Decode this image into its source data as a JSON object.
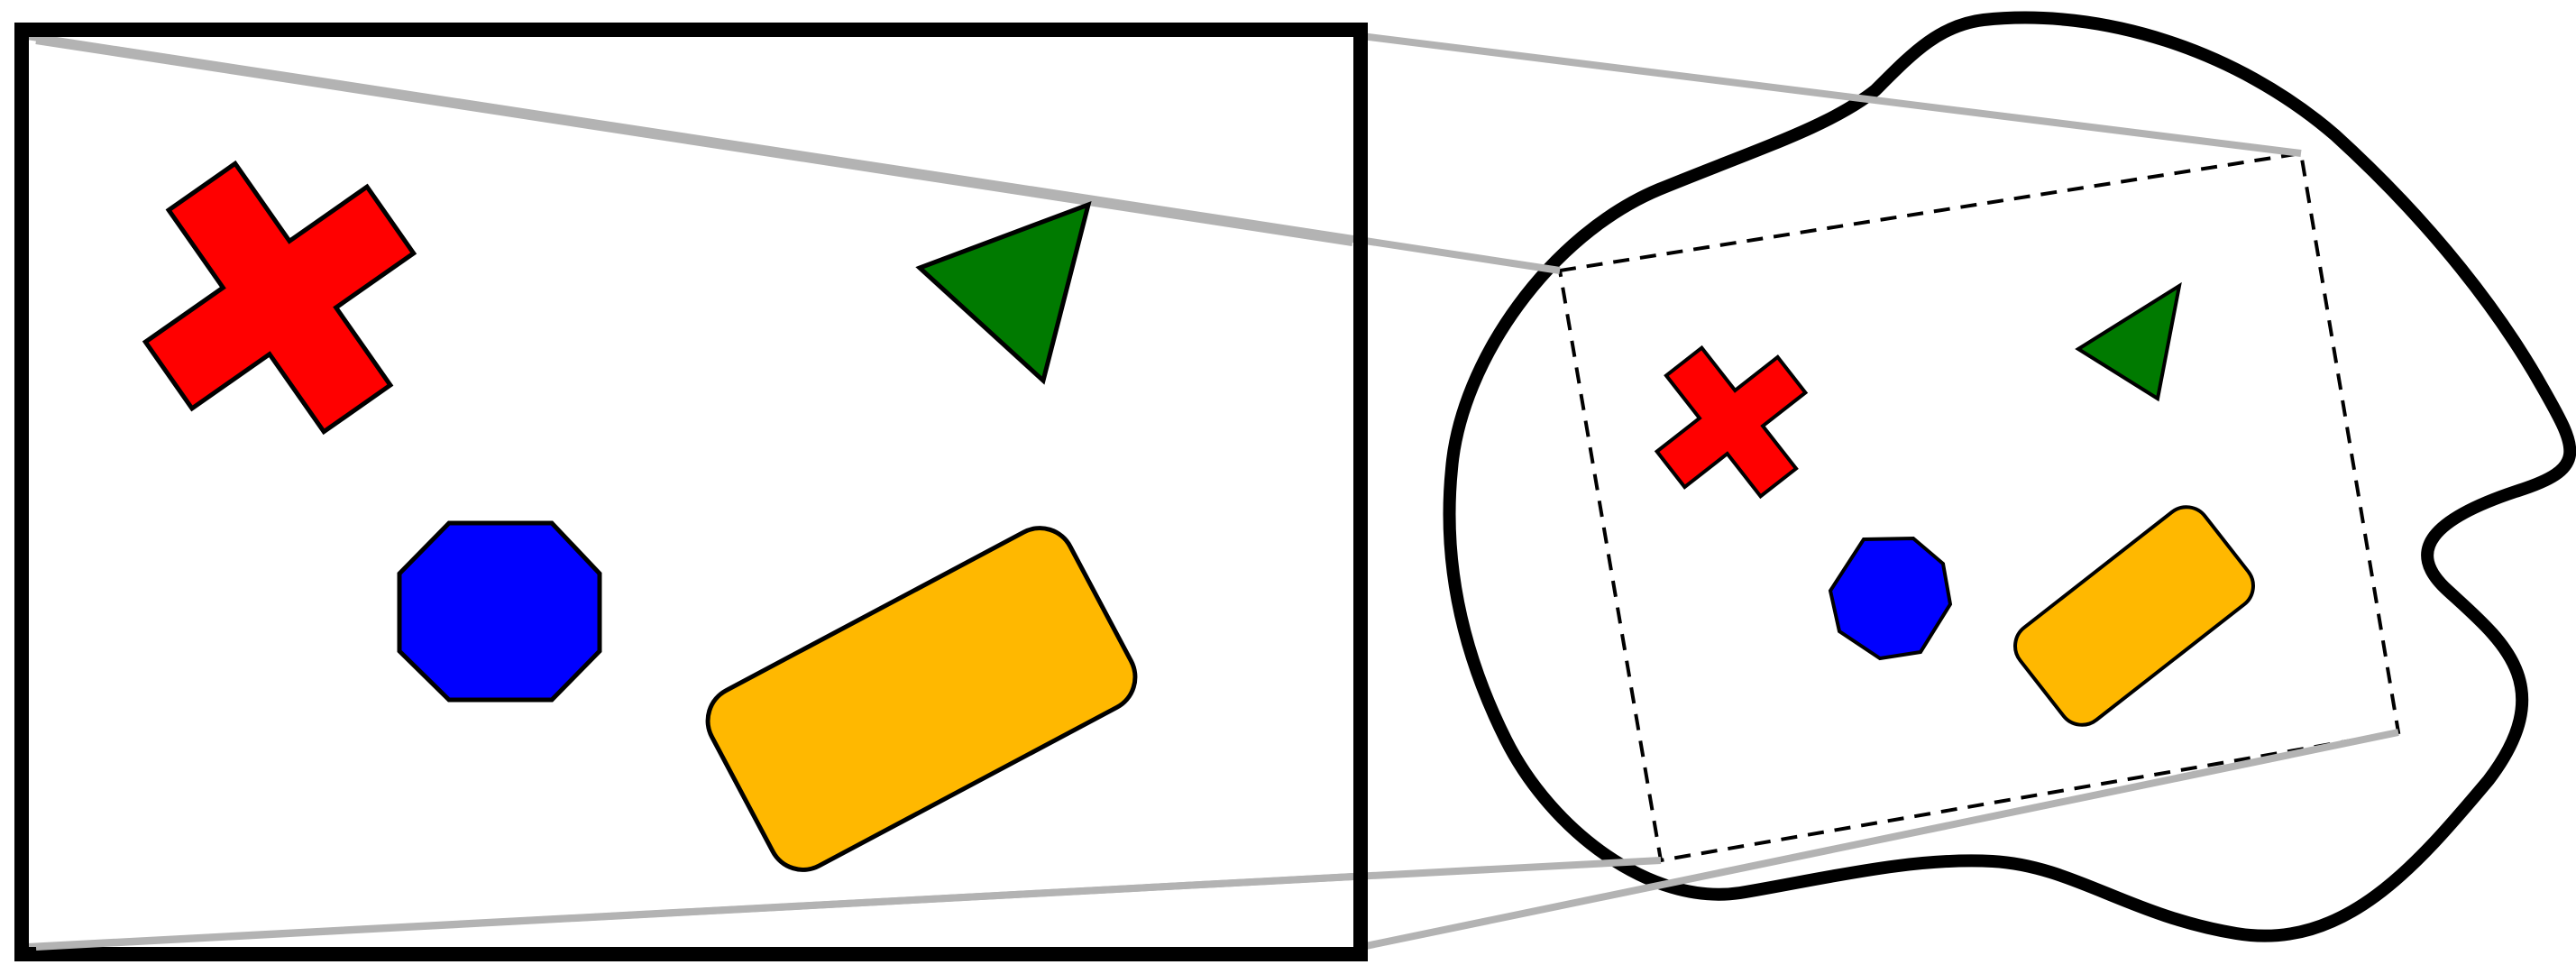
{
  "diagram": {
    "description_free": true,
    "colors": {
      "background": "#ffffff",
      "outline": "#000000",
      "connector": "#b3b3b3",
      "cross": "#ff0000",
      "triangle": "#007a00",
      "octagon": "#0000ff",
      "rounded_rectangle": "#ffb800"
    },
    "shapes": [
      "cross",
      "triangle",
      "octagon",
      "rounded-rectangle"
    ],
    "views": [
      "zoomed-rectangle-view",
      "blob-region-view"
    ],
    "connector_style": "light-gray lines linking zoomed view corners to dashed region",
    "region_style": "dashed quadrilateral inside irregular blob outline"
  }
}
